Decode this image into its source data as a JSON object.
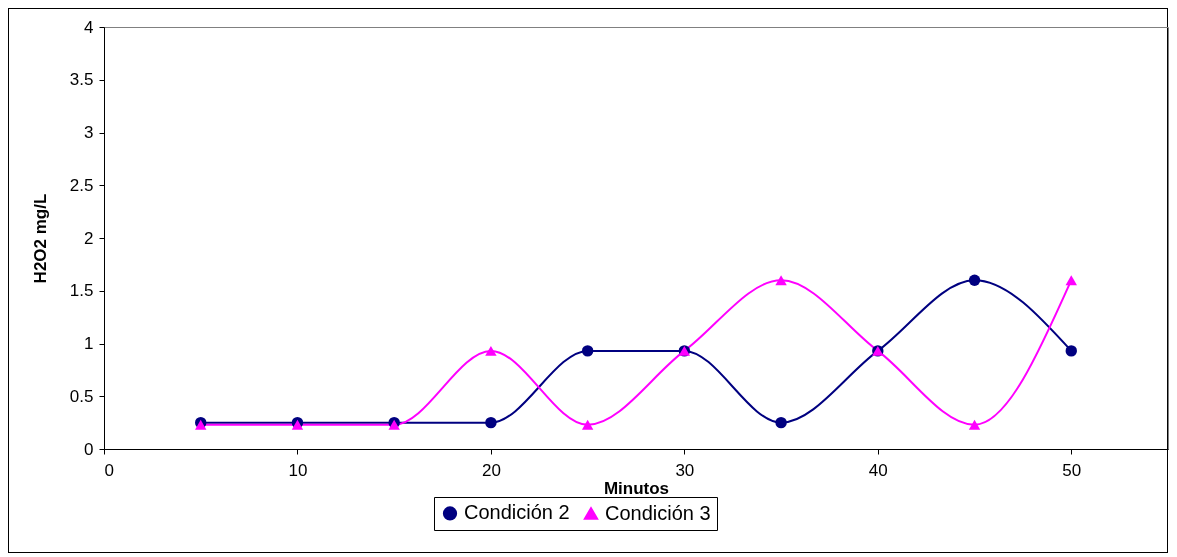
{
  "chart_data": {
    "type": "line",
    "xlabel": "Minutos",
    "ylabel": "H2O2  mg/L",
    "x": [
      5,
      10,
      15,
      20,
      25,
      30,
      35,
      40,
      45,
      50
    ],
    "series": [
      {
        "name": "Condición 2",
        "color": "#000080",
        "marker": "circle",
        "values": [
          0.25,
          0.25,
          0.25,
          0.25,
          0.93,
          0.93,
          0.25,
          0.93,
          1.6,
          0.93
        ]
      },
      {
        "name": "Condición 3",
        "color": "#ff00ff",
        "marker": "triangle",
        "values": [
          0.23,
          0.23,
          0.23,
          0.93,
          0.23,
          0.93,
          1.6,
          0.93,
          0.23,
          1.6
        ]
      }
    ],
    "xlim": [
      0,
      55
    ],
    "xticks": [
      0,
      10,
      20,
      30,
      40,
      50
    ],
    "ylim": [
      0,
      4
    ],
    "yticks": [
      0,
      0.5,
      1,
      1.5,
      2,
      2.5,
      3,
      3.5,
      4
    ],
    "grid": false,
    "legend": "bottom"
  }
}
